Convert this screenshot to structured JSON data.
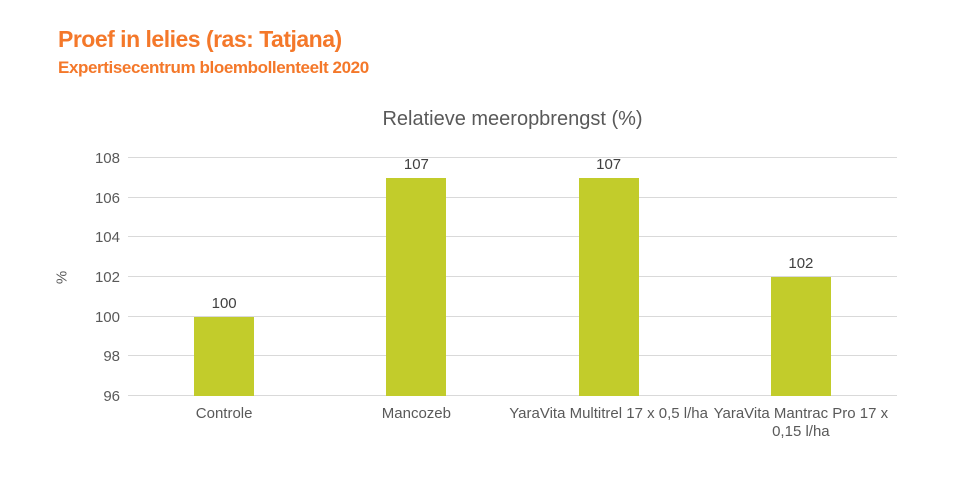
{
  "page": {
    "title": "Proef in lelies (ras: Tatjana)",
    "subtitle": "Expertisecentrum bloembollenteelt 2020"
  },
  "colors": {
    "title_orange": "#f4782a",
    "bar_fill": "#c2cc2b",
    "gridline": "#d9d9d9",
    "axis_text": "#595959",
    "value_label": "#404040",
    "background": "#ffffff"
  },
  "chart_data": {
    "type": "bar",
    "title": "Relatieve meeropbrengst (%)",
    "categories": [
      "Controle",
      "Mancozeb",
      "YaraVita Multitrel 17 x 0,5 l/ha",
      "YaraVita Mantrac Pro 17 x 0,15 l/ha"
    ],
    "values": [
      100,
      107,
      107,
      102
    ],
    "data_labels": [
      "100",
      "107",
      "107",
      "102"
    ],
    "xlabel": "",
    "ylabel": "%",
    "ylim": [
      96,
      108
    ],
    "yticks": [
      96,
      98,
      100,
      102,
      104,
      106,
      108
    ],
    "grid": true,
    "legend": false,
    "bar_color": "#c2cc2b"
  }
}
